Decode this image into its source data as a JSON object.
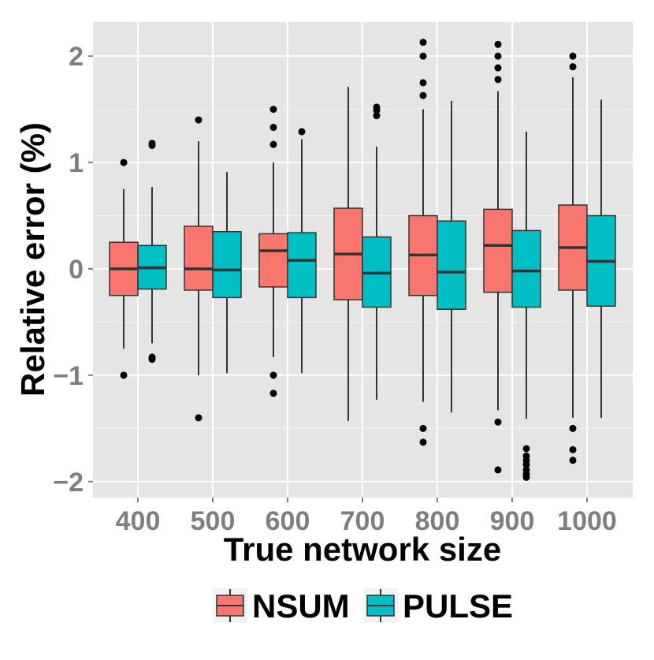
{
  "chart_data": {
    "type": "boxplot",
    "xlabel": "True network size",
    "ylabel": "Relative error (%)",
    "categories": [
      "400",
      "500",
      "600",
      "700",
      "800",
      "900",
      "1000"
    ],
    "y_ticks": [
      -2,
      -1,
      0,
      1,
      2
    ],
    "y_tick_labels": [
      "−2",
      "−1",
      "0",
      "1",
      "2"
    ],
    "ylim": [
      -2.15,
      2.32
    ],
    "grid": true,
    "legend": {
      "position": "bottom",
      "title": ""
    },
    "series": [
      {
        "name": "NSUM",
        "color": "#F8766D",
        "boxes": [
          {
            "lower_whisker": -0.75,
            "q1": -0.25,
            "median": 0.0,
            "q3": 0.25,
            "upper_whisker": 0.75,
            "outliers": [
              1.0,
              -1.0
            ]
          },
          {
            "lower_whisker": -1.0,
            "q1": -0.2,
            "median": 0.0,
            "q3": 0.4,
            "upper_whisker": 1.2,
            "outliers": [
              1.4,
              -1.4
            ]
          },
          {
            "lower_whisker": -0.83,
            "q1": -0.17,
            "median": 0.17,
            "q3": 0.33,
            "upper_whisker": 1.0,
            "outliers": [
              1.5,
              1.33,
              1.17,
              -1.0,
              -1.17
            ]
          },
          {
            "lower_whisker": -1.43,
            "q1": -0.29,
            "median": 0.14,
            "q3": 0.57,
            "upper_whisker": 1.71,
            "outliers": []
          },
          {
            "lower_whisker": -1.25,
            "q1": -0.25,
            "median": 0.13,
            "q3": 0.5,
            "upper_whisker": 1.5,
            "outliers": [
              2.13,
              2.0,
              1.75,
              1.63,
              -1.5,
              -1.63
            ]
          },
          {
            "lower_whisker": -1.33,
            "q1": -0.22,
            "median": 0.22,
            "q3": 0.56,
            "upper_whisker": 1.67,
            "outliers": [
              2.11,
              2.0,
              1.89,
              1.78,
              -1.44,
              -1.89
            ]
          },
          {
            "lower_whisker": -1.4,
            "q1": -0.2,
            "median": 0.2,
            "q3": 0.6,
            "upper_whisker": 1.8,
            "outliers": [
              2.0,
              1.9,
              -1.5,
              -1.7,
              -1.8
            ]
          }
        ]
      },
      {
        "name": "PULSE",
        "color": "#00BFC4",
        "boxes": [
          {
            "lower_whisker": -0.7,
            "q1": -0.19,
            "median": 0.01,
            "q3": 0.22,
            "upper_whisker": 0.77,
            "outliers": [
              1.18,
              1.16,
              -0.83,
              -0.85
            ]
          },
          {
            "lower_whisker": -0.98,
            "q1": -0.27,
            "median": -0.01,
            "q3": 0.35,
            "upper_whisker": 0.91,
            "outliers": []
          },
          {
            "lower_whisker": -0.98,
            "q1": -0.27,
            "median": 0.08,
            "q3": 0.34,
            "upper_whisker": 1.22,
            "outliers": [
              1.29
            ]
          },
          {
            "lower_whisker": -1.23,
            "q1": -0.36,
            "median": -0.04,
            "q3": 0.3,
            "upper_whisker": 1.15,
            "outliers": [
              1.52,
              1.49,
              1.44
            ]
          },
          {
            "lower_whisker": -1.35,
            "q1": -0.38,
            "median": -0.03,
            "q3": 0.45,
            "upper_whisker": 1.58,
            "outliers": []
          },
          {
            "lower_whisker": -1.41,
            "q1": -0.36,
            "median": -0.02,
            "q3": 0.36,
            "upper_whisker": 1.29,
            "outliers": [
              -1.69,
              -1.76,
              -1.8,
              -1.84,
              -1.89,
              -1.93,
              -1.96
            ]
          },
          {
            "lower_whisker": -1.4,
            "q1": -0.35,
            "median": 0.07,
            "q3": 0.5,
            "upper_whisker": 1.59,
            "outliers": []
          }
        ]
      }
    ]
  }
}
